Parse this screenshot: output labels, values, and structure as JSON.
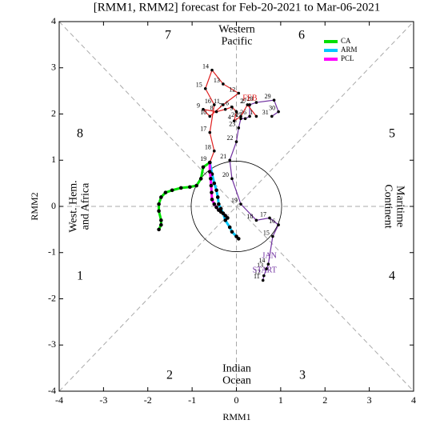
{
  "chart_data": {
    "type": "rmm_phase",
    "title": "[RMM1, RMM2] forecast for Feb-20-2021 to Mar-06-2021",
    "x_label": "RMM1",
    "y_label": "RMM2",
    "xlim": [
      -4,
      4
    ],
    "ylim": [
      -4,
      4
    ],
    "xticks": [
      -4,
      -3,
      -2,
      -1,
      0,
      1,
      2,
      3,
      4
    ],
    "yticks": [
      -4,
      -3,
      -2,
      -1,
      0,
      1,
      2,
      3,
      4
    ],
    "phases": [
      1,
      2,
      3,
      4,
      5,
      6,
      7,
      8
    ],
    "regions": [
      [
        "Western",
        "Pacific"
      ],
      [
        "Indian",
        "Ocean"
      ],
      [
        "West. Hem.",
        "and Africa"
      ],
      [
        "Maritime",
        "Continent"
      ]
    ],
    "start_label": "START",
    "series": [
      {
        "name": "JAN",
        "color": "#7030a0",
        "kind": "observed",
        "labels": [
          11,
          12,
          13,
          14,
          15,
          16,
          17,
          18,
          19,
          20,
          21,
          22,
          23,
          24,
          25,
          26,
          27,
          28,
          29,
          30,
          31
        ],
        "x": [
          0.6,
          0.62,
          0.68,
          0.72,
          0.82,
          0.95,
          0.75,
          0.45,
          0.1,
          -0.1,
          -0.15,
          0,
          0.05,
          0.1,
          0.2,
          0.3,
          0.3,
          0.45,
          0.85,
          0.95,
          0.8
        ],
        "values": [
          -1.6,
          -1.5,
          -1.35,
          -1.25,
          -0.65,
          -0.4,
          -0.25,
          -0.3,
          0.05,
          0.6,
          1.0,
          1.4,
          1.7,
          1.9,
          1.9,
          1.95,
          2.2,
          2.25,
          2.3,
          2.05,
          1.95
        ]
      },
      {
        "name": "FEB",
        "color": "#e02020",
        "kind": "observed",
        "labels": [
          1,
          2,
          3,
          4,
          5,
          6,
          7,
          8,
          9,
          10,
          11,
          12,
          13,
          14,
          15,
          16,
          17,
          18,
          19
        ],
        "x": [
          0.45,
          0.25,
          0.1,
          -0.05,
          0.0,
          -0.1,
          -0.25,
          -0.45,
          -0.75,
          -0.6,
          -0.3,
          0.05,
          -0.3,
          -0.55,
          -0.7,
          -0.5,
          -0.6,
          -0.5,
          -0.6
        ],
        "values": [
          1.95,
          2.2,
          1.95,
          1.85,
          2.05,
          2.15,
          2.1,
          2.05,
          2.1,
          1.95,
          2.2,
          2.45,
          2.65,
          2.95,
          2.55,
          2.2,
          1.6,
          1.2,
          0.95
        ]
      },
      {
        "name": "CA",
        "color": "#00e000",
        "kind": "forecast",
        "x": [
          -0.6,
          -0.75,
          -0.8,
          -0.9,
          -1.05,
          -1.25,
          -1.45,
          -1.6,
          -1.7,
          -1.75,
          -1.75,
          -1.7,
          -1.7,
          -1.75
        ],
        "values": [
          0.95,
          0.85,
          0.6,
          0.45,
          0.42,
          0.4,
          0.35,
          0.3,
          0.2,
          0.05,
          -0.1,
          -0.3,
          -0.4,
          -0.5
        ]
      },
      {
        "name": "ARM",
        "color": "#00c8ff",
        "kind": "forecast",
        "x": [
          -0.6,
          -0.55,
          -0.5,
          -0.45,
          -0.42,
          -0.4,
          -0.35,
          -0.3,
          -0.25,
          -0.15,
          -0.1,
          0,
          0.05
        ],
        "values": [
          0.95,
          0.7,
          0.5,
          0.35,
          0.2,
          0.05,
          -0.05,
          -0.15,
          -0.3,
          -0.45,
          -0.55,
          -0.65,
          -0.7
        ]
      },
      {
        "name": "PCL",
        "color": "#ff00ff",
        "kind": "forecast",
        "x": [
          -0.6,
          -0.6,
          -0.58,
          -0.57,
          -0.56,
          -0.55,
          -0.5,
          -0.45,
          -0.4,
          -0.35,
          -0.3,
          -0.25,
          -0.2
        ],
        "values": [
          0.95,
          0.75,
          0.6,
          0.45,
          0.3,
          0.15,
          0.05,
          -0.02,
          -0.08,
          -0.12,
          -0.15,
          -0.2,
          -0.25
        ]
      }
    ]
  }
}
